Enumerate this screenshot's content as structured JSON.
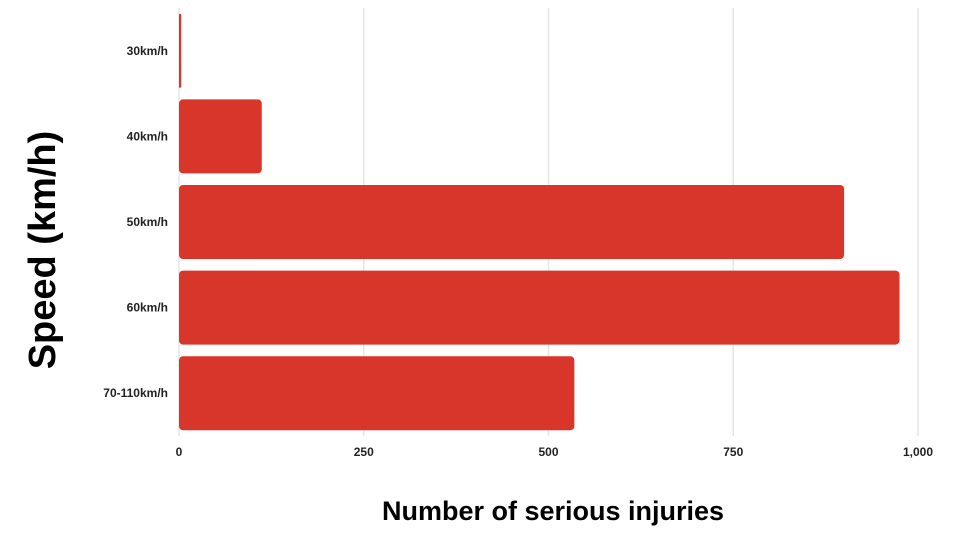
{
  "chart_data": {
    "type": "bar",
    "orientation": "horizontal",
    "categories": [
      "30km/h",
      "40km/h",
      "50km/h",
      "60km/h",
      "70-110km/h"
    ],
    "values": [
      3,
      112,
      900,
      975,
      535
    ],
    "xlabel": "Number of serious injuries",
    "ylabel": "Speed (km/h)",
    "xlim": [
      0,
      1000
    ],
    "xticks": [
      0,
      250,
      500,
      750,
      1000
    ],
    "xtick_labels": [
      "0",
      "250",
      "500",
      "750",
      "1,000"
    ],
    "grid": "vertical",
    "colors": {
      "bar": "#d9362b",
      "grid": "#e6e6e6"
    }
  }
}
